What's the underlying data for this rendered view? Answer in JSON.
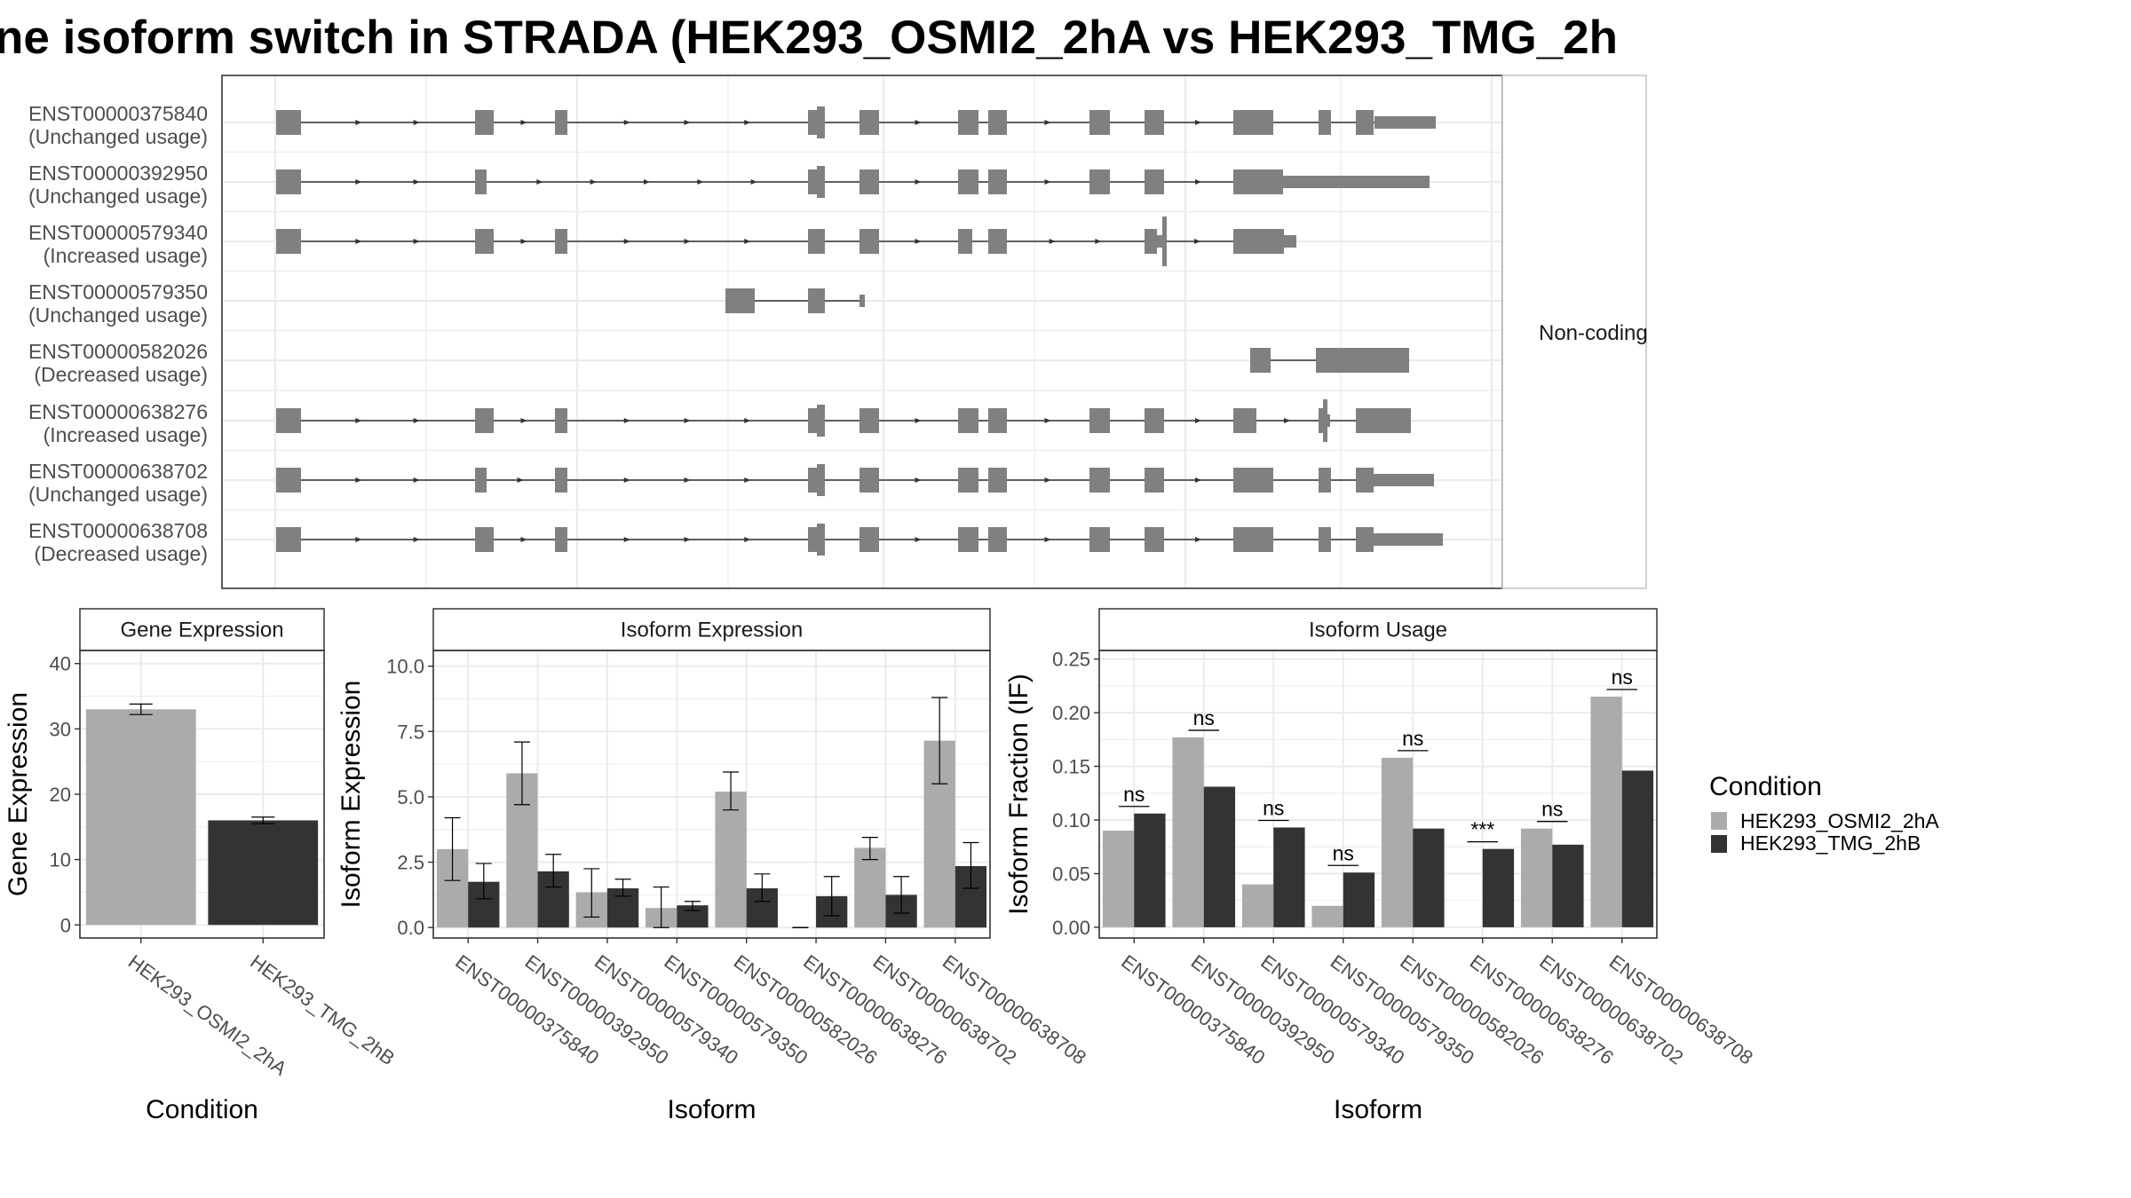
{
  "title": "ne isoform switch in STRADA (HEK293_OSMI2_2hA vs HEK293_TMG_2h",
  "colors": {
    "cond1": "#ababab",
    "cond2": "#333333",
    "exon": "#808080",
    "grid": "#ebebeb",
    "strip_bg": "#ffffff"
  },
  "structure": {
    "facet_label": "Non-coding",
    "isoforms": [
      {
        "id": "ENST00000375840",
        "usage": "(Unchanged usage)"
      },
      {
        "id": "ENST00000392950",
        "usage": "(Unchanged usage)"
      },
      {
        "id": "ENST00000579340",
        "usage": "(Increased usage)"
      },
      {
        "id": "ENST00000579350",
        "usage": "(Unchanged usage)"
      },
      {
        "id": "ENST00000582026",
        "usage": "(Decreased usage)"
      },
      {
        "id": "ENST00000638276",
        "usage": "(Increased usage)"
      },
      {
        "id": "ENST00000638702",
        "usage": "(Unchanged usage)"
      },
      {
        "id": "ENST00000638708",
        "usage": "(Decreased usage)"
      }
    ]
  },
  "legend": {
    "title": "Condition",
    "items": [
      "HEK293_OSMI2_2hA",
      "HEK293_TMG_2hB"
    ]
  },
  "chart_data": [
    {
      "type": "bar",
      "title": "Gene Expression",
      "xlabel": "Condition",
      "ylabel": "Gene Expression",
      "categories": [
        "HEK293_OSMI2_2hA",
        "HEK293_TMG_2hB"
      ],
      "values": [
        33.0,
        16.0
      ],
      "errors": [
        [
          32.2,
          33.8
        ],
        [
          15.5,
          16.5
        ]
      ],
      "ylim": [
        -2,
        42
      ],
      "yticks": [
        "0",
        "10",
        "20",
        "30",
        "40"
      ]
    },
    {
      "type": "bar",
      "title": "Isoform Expression",
      "xlabel": "Isoform",
      "ylabel": "Isoform Expression",
      "categories": [
        "ENST00000375840",
        "ENST00000392950",
        "ENST00000579340",
        "ENST00000579350",
        "ENST00000582026",
        "ENST00000638276",
        "ENST00000638702",
        "ENST00000638708"
      ],
      "series": [
        {
          "name": "HEK293_OSMI2_2hA",
          "values": [
            3.0,
            5.9,
            1.35,
            0.75,
            5.2,
            0.0,
            3.05,
            7.15
          ],
          "errors": [
            [
              1.8,
              4.2
            ],
            [
              4.7,
              7.1
            ],
            [
              0.4,
              2.25
            ],
            [
              0.0,
              1.55
            ],
            [
              4.5,
              5.95
            ],
            [
              0.0,
              0.0
            ],
            [
              2.6,
              3.45
            ],
            [
              5.5,
              8.8
            ]
          ]
        },
        {
          "name": "HEK293_TMG_2hB",
          "values": [
            1.75,
            2.15,
            1.5,
            0.85,
            1.5,
            1.2,
            1.25,
            2.35
          ],
          "errors": [
            [
              1.1,
              2.45
            ],
            [
              1.55,
              2.8
            ],
            [
              1.2,
              1.85
            ],
            [
              0.65,
              1.0
            ],
            [
              1.0,
              2.05
            ],
            [
              0.45,
              1.95
            ],
            [
              0.55,
              1.95
            ],
            [
              1.5,
              3.25
            ]
          ]
        }
      ],
      "ylim": [
        -0.4,
        10.6
      ],
      "yticks": [
        "0.0",
        "2.5",
        "5.0",
        "7.5",
        "10.0"
      ]
    },
    {
      "type": "bar",
      "title": "Isoform Usage",
      "xlabel": "Isoform",
      "ylabel": "Isoform Fraction (IF)",
      "categories": [
        "ENST00000375840",
        "ENST00000392950",
        "ENST00000579340",
        "ENST00000579350",
        "ENST00000582026",
        "ENST00000638276",
        "ENST00000638702",
        "ENST00000638708"
      ],
      "series": [
        {
          "name": "HEK293_OSMI2_2hA",
          "values": [
            0.09,
            0.177,
            0.04,
            0.02,
            0.158,
            0.0,
            0.092,
            0.215
          ]
        },
        {
          "name": "HEK293_TMG_2hB",
          "values": [
            0.106,
            0.131,
            0.093,
            0.051,
            0.092,
            0.073,
            0.077,
            0.146
          ]
        }
      ],
      "significance": [
        "ns",
        "ns",
        "ns",
        "ns",
        "ns",
        "***",
        "ns",
        "ns"
      ],
      "ylim": [
        -0.01,
        0.258
      ],
      "yticks": [
        "0.00",
        "0.05",
        "0.10",
        "0.15",
        "0.20",
        "0.25"
      ]
    }
  ]
}
